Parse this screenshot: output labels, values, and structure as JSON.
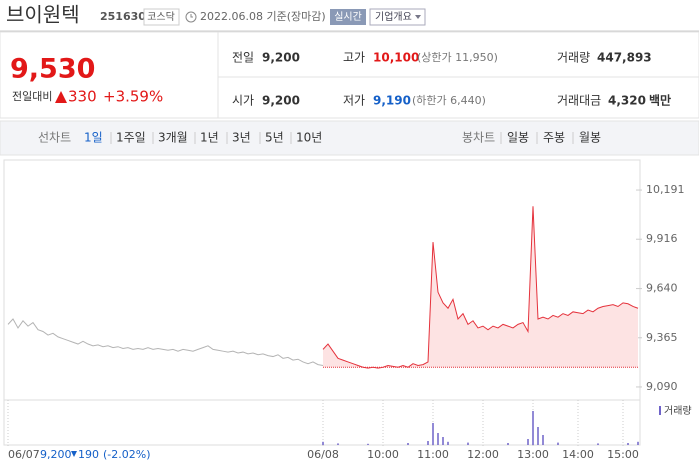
{
  "header": {
    "name": "브이원텍",
    "code": "251630",
    "market": "코스닥",
    "date": "2022.06.08 기준(장마감)",
    "realtime": "실시간",
    "company": "기업개요"
  },
  "price": {
    "current": "9,530",
    "change_label": "전일대비",
    "change": "330",
    "change_pct": "+3.59%"
  },
  "stats": [
    [
      {
        "label": "전일",
        "value": "9,200"
      },
      {
        "label": "고가",
        "value": "10,100",
        "note": "(상한가 11,950)"
      },
      {
        "label": "거래량",
        "value": "447,893"
      }
    ],
    [
      {
        "label": "시가",
        "value": "9,200"
      },
      {
        "label": "저가",
        "value": "9,190",
        "note": "(하한가 6,440)"
      },
      {
        "label": "거래대금",
        "value": "4,320",
        "unit": "백만"
      }
    ]
  ],
  "tabs": {
    "line_label": "선차트",
    "line_items": [
      "1일",
      "1주일",
      "3개월",
      "1년",
      "3년",
      "5년",
      "10년"
    ],
    "candle_label": "봉차트",
    "candle_items": [
      "일봉",
      "주봉",
      "월봉"
    ]
  },
  "footer": {
    "price": "9,200",
    "change": "190",
    "change_pct": "(-2.02%)"
  },
  "chart_data": [
    {
      "type": "line",
      "xlim": [
        0,
        126
      ],
      "xticks": [
        {
          "value": 0,
          "label": "06/07"
        },
        {
          "value": 63,
          "label": "06/08"
        },
        {
          "value": 75,
          "label": "10:00"
        },
        {
          "value": 85,
          "label": "11:00"
        },
        {
          "value": 95,
          "label": "12:00"
        },
        {
          "value": 105,
          "label": "13:00"
        },
        {
          "value": 114,
          "label": "14:00"
        },
        {
          "value": 123,
          "label": "15:00"
        }
      ],
      "ylim": [
        9045,
        10331
      ],
      "yticks": [
        {
          "value": 10191,
          "label": "10,191"
        },
        {
          "value": 9916,
          "label": "9,916"
        },
        {
          "value": 9640,
          "label": "9,640"
        },
        {
          "value": 9365,
          "label": "9,365"
        },
        {
          "value": 9090,
          "label": "9,090"
        }
      ],
      "grid": false,
      "baseline": 9200,
      "series": [
        {
          "color": "#b4b4b4",
          "values": [
            9440,
            9470,
            9420,
            9460,
            9430,
            9450,
            9410,
            9400,
            9380,
            9390,
            9370,
            9360,
            9350,
            9340,
            9330,
            9345,
            9330,
            9320,
            9325,
            9315,
            9320,
            9310,
            9315,
            9305,
            9310,
            9300,
            9305,
            9300,
            9310,
            9300,
            9305,
            9300,
            9295,
            9300,
            9290,
            9300,
            9295,
            9290,
            9300,
            9310,
            9320,
            9300,
            9295,
            9290,
            9285,
            9290,
            9280,
            9285,
            9275,
            9280,
            9270,
            9275,
            9265,
            9260,
            9270,
            9250,
            9255,
            9240,
            9245,
            9230,
            9220,
            9230,
            9215,
            9210,
            null,
            null,
            null,
            null,
            null,
            null,
            null,
            null,
            null,
            null,
            null,
            null,
            null,
            null,
            null,
            null,
            null,
            null,
            null,
            null,
            null,
            null,
            null,
            null,
            null,
            null,
            null,
            null,
            null,
            null,
            null,
            null,
            null,
            null,
            null,
            null,
            null,
            null,
            null,
            null,
            null,
            null,
            null,
            null,
            null,
            null,
            null,
            null,
            null,
            null,
            null,
            null,
            null,
            null,
            null,
            null,
            null,
            null,
            null,
            null,
            null,
            null,
            null
          ]
        },
        {
          "color": "#e5323c",
          "fill": "#fde3e3",
          "values": [
            null,
            null,
            null,
            null,
            null,
            null,
            null,
            null,
            null,
            null,
            null,
            null,
            null,
            null,
            null,
            null,
            null,
            null,
            null,
            null,
            null,
            null,
            null,
            null,
            null,
            null,
            null,
            null,
            null,
            null,
            null,
            null,
            null,
            null,
            null,
            null,
            null,
            null,
            null,
            null,
            null,
            null,
            null,
            null,
            null,
            null,
            null,
            null,
            null,
            null,
            null,
            null,
            null,
            null,
            null,
            null,
            null,
            null,
            null,
            null,
            null,
            null,
            null,
            9300,
            9330,
            9290,
            9250,
            9240,
            9230,
            9220,
            9210,
            9200,
            9195,
            9200,
            9195,
            9200,
            9210,
            9205,
            9200,
            9210,
            9200,
            9220,
            9210,
            9215,
            9230,
            9900,
            9620,
            9560,
            9530,
            9580,
            9470,
            9500,
            9440,
            9460,
            9420,
            9430,
            9410,
            9430,
            9420,
            9440,
            9430,
            9420,
            9440,
            9450,
            9400,
            10100,
            9470,
            9480,
            9470,
            9490,
            9480,
            9500,
            9490,
            9510,
            9505,
            9500,
            9520,
            9510,
            9530,
            9540,
            9545,
            9550,
            9540,
            9560,
            9555,
            9540,
            9530
          ]
        }
      ]
    },
    {
      "type": "bar",
      "xlim": [
        0,
        126
      ],
      "ylim": [
        0,
        100
      ],
      "x": [
        63,
        66,
        72,
        80,
        84,
        85,
        86,
        87,
        88,
        92,
        100,
        104,
        105,
        106,
        107,
        110,
        118,
        124,
        126
      ],
      "series": [
        {
          "name": "거래량",
          "color": "#6f63c9",
          "values": [
            8,
            4,
            3,
            5,
            10,
            55,
            30,
            20,
            8,
            6,
            5,
            15,
            85,
            45,
            25,
            6,
            4,
            5,
            8
          ]
        }
      ]
    }
  ]
}
